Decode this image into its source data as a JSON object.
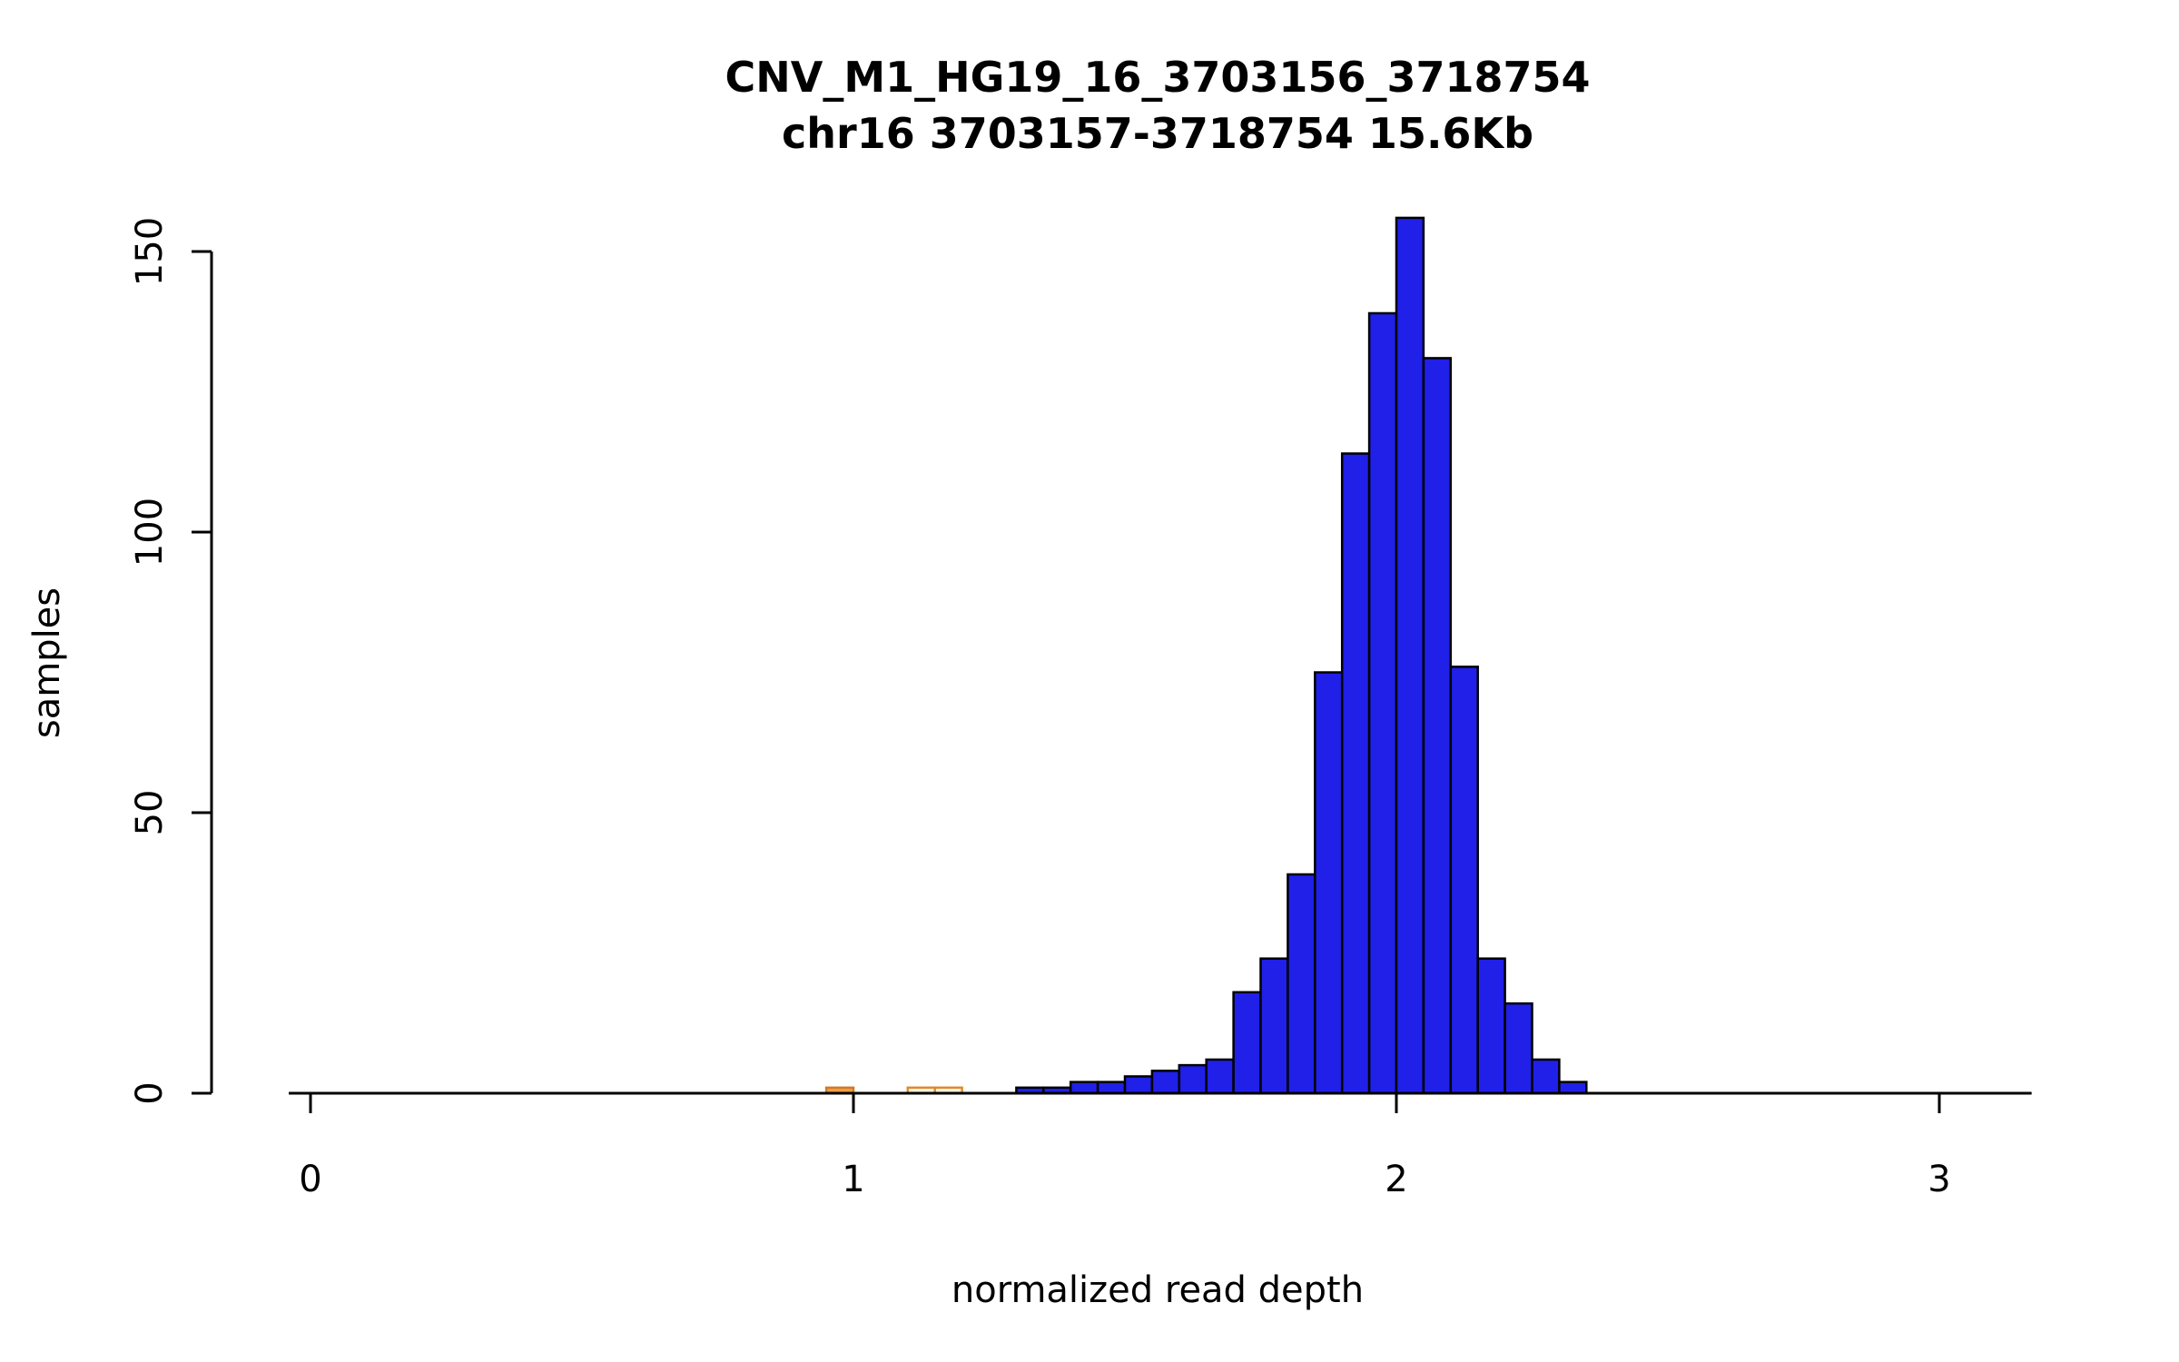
{
  "chart_data": {
    "type": "bar",
    "subtype": "histogram",
    "title": "CNV_M1_HG19_16_3703156_3718754",
    "subtitle": "chr16 3703157-3718754 15.6Kb",
    "xlabel": "normalized read depth",
    "ylabel": "samples",
    "bin_width": 0.05,
    "x_ticks": [
      0,
      1,
      2,
      3
    ],
    "y_ticks": [
      0,
      50,
      100,
      150
    ],
    "x_axis_line_range": [
      -0.04,
      3.17
    ],
    "ylim": [
      0,
      156
    ],
    "grid": false,
    "legend": "none",
    "bar_color": "#2020E8",
    "bar_border": "#000000",
    "outlier_fill": "#F49C42",
    "outlier_border": "#C97B2D",
    "bins": [
      {
        "x0": 0.95,
        "count": 1,
        "fill": "#F49C42",
        "stroke": "#C97B2D"
      },
      {
        "x0": 1.1,
        "count": 1,
        "fill": "#FFF3E0",
        "stroke": "#DD8A2E"
      },
      {
        "x0": 1.15,
        "count": 1,
        "fill": "#FFF3E0",
        "stroke": "#DD8A2E"
      },
      {
        "x0": 1.3,
        "count": 1
      },
      {
        "x0": 1.35,
        "count": 1
      },
      {
        "x0": 1.4,
        "count": 2
      },
      {
        "x0": 1.45,
        "count": 2
      },
      {
        "x0": 1.5,
        "count": 3
      },
      {
        "x0": 1.55,
        "count": 4
      },
      {
        "x0": 1.6,
        "count": 5
      },
      {
        "x0": 1.65,
        "count": 6
      },
      {
        "x0": 1.7,
        "count": 18
      },
      {
        "x0": 1.75,
        "count": 24
      },
      {
        "x0": 1.8,
        "count": 39
      },
      {
        "x0": 1.85,
        "count": 75
      },
      {
        "x0": 1.9,
        "count": 114
      },
      {
        "x0": 1.95,
        "count": 139
      },
      {
        "x0": 2.0,
        "count": 156
      },
      {
        "x0": 2.05,
        "count": 131
      },
      {
        "x0": 2.1,
        "count": 76
      },
      {
        "x0": 2.15,
        "count": 24
      },
      {
        "x0": 2.2,
        "count": 16
      },
      {
        "x0": 2.25,
        "count": 6
      },
      {
        "x0": 2.3,
        "count": 2
      }
    ]
  }
}
